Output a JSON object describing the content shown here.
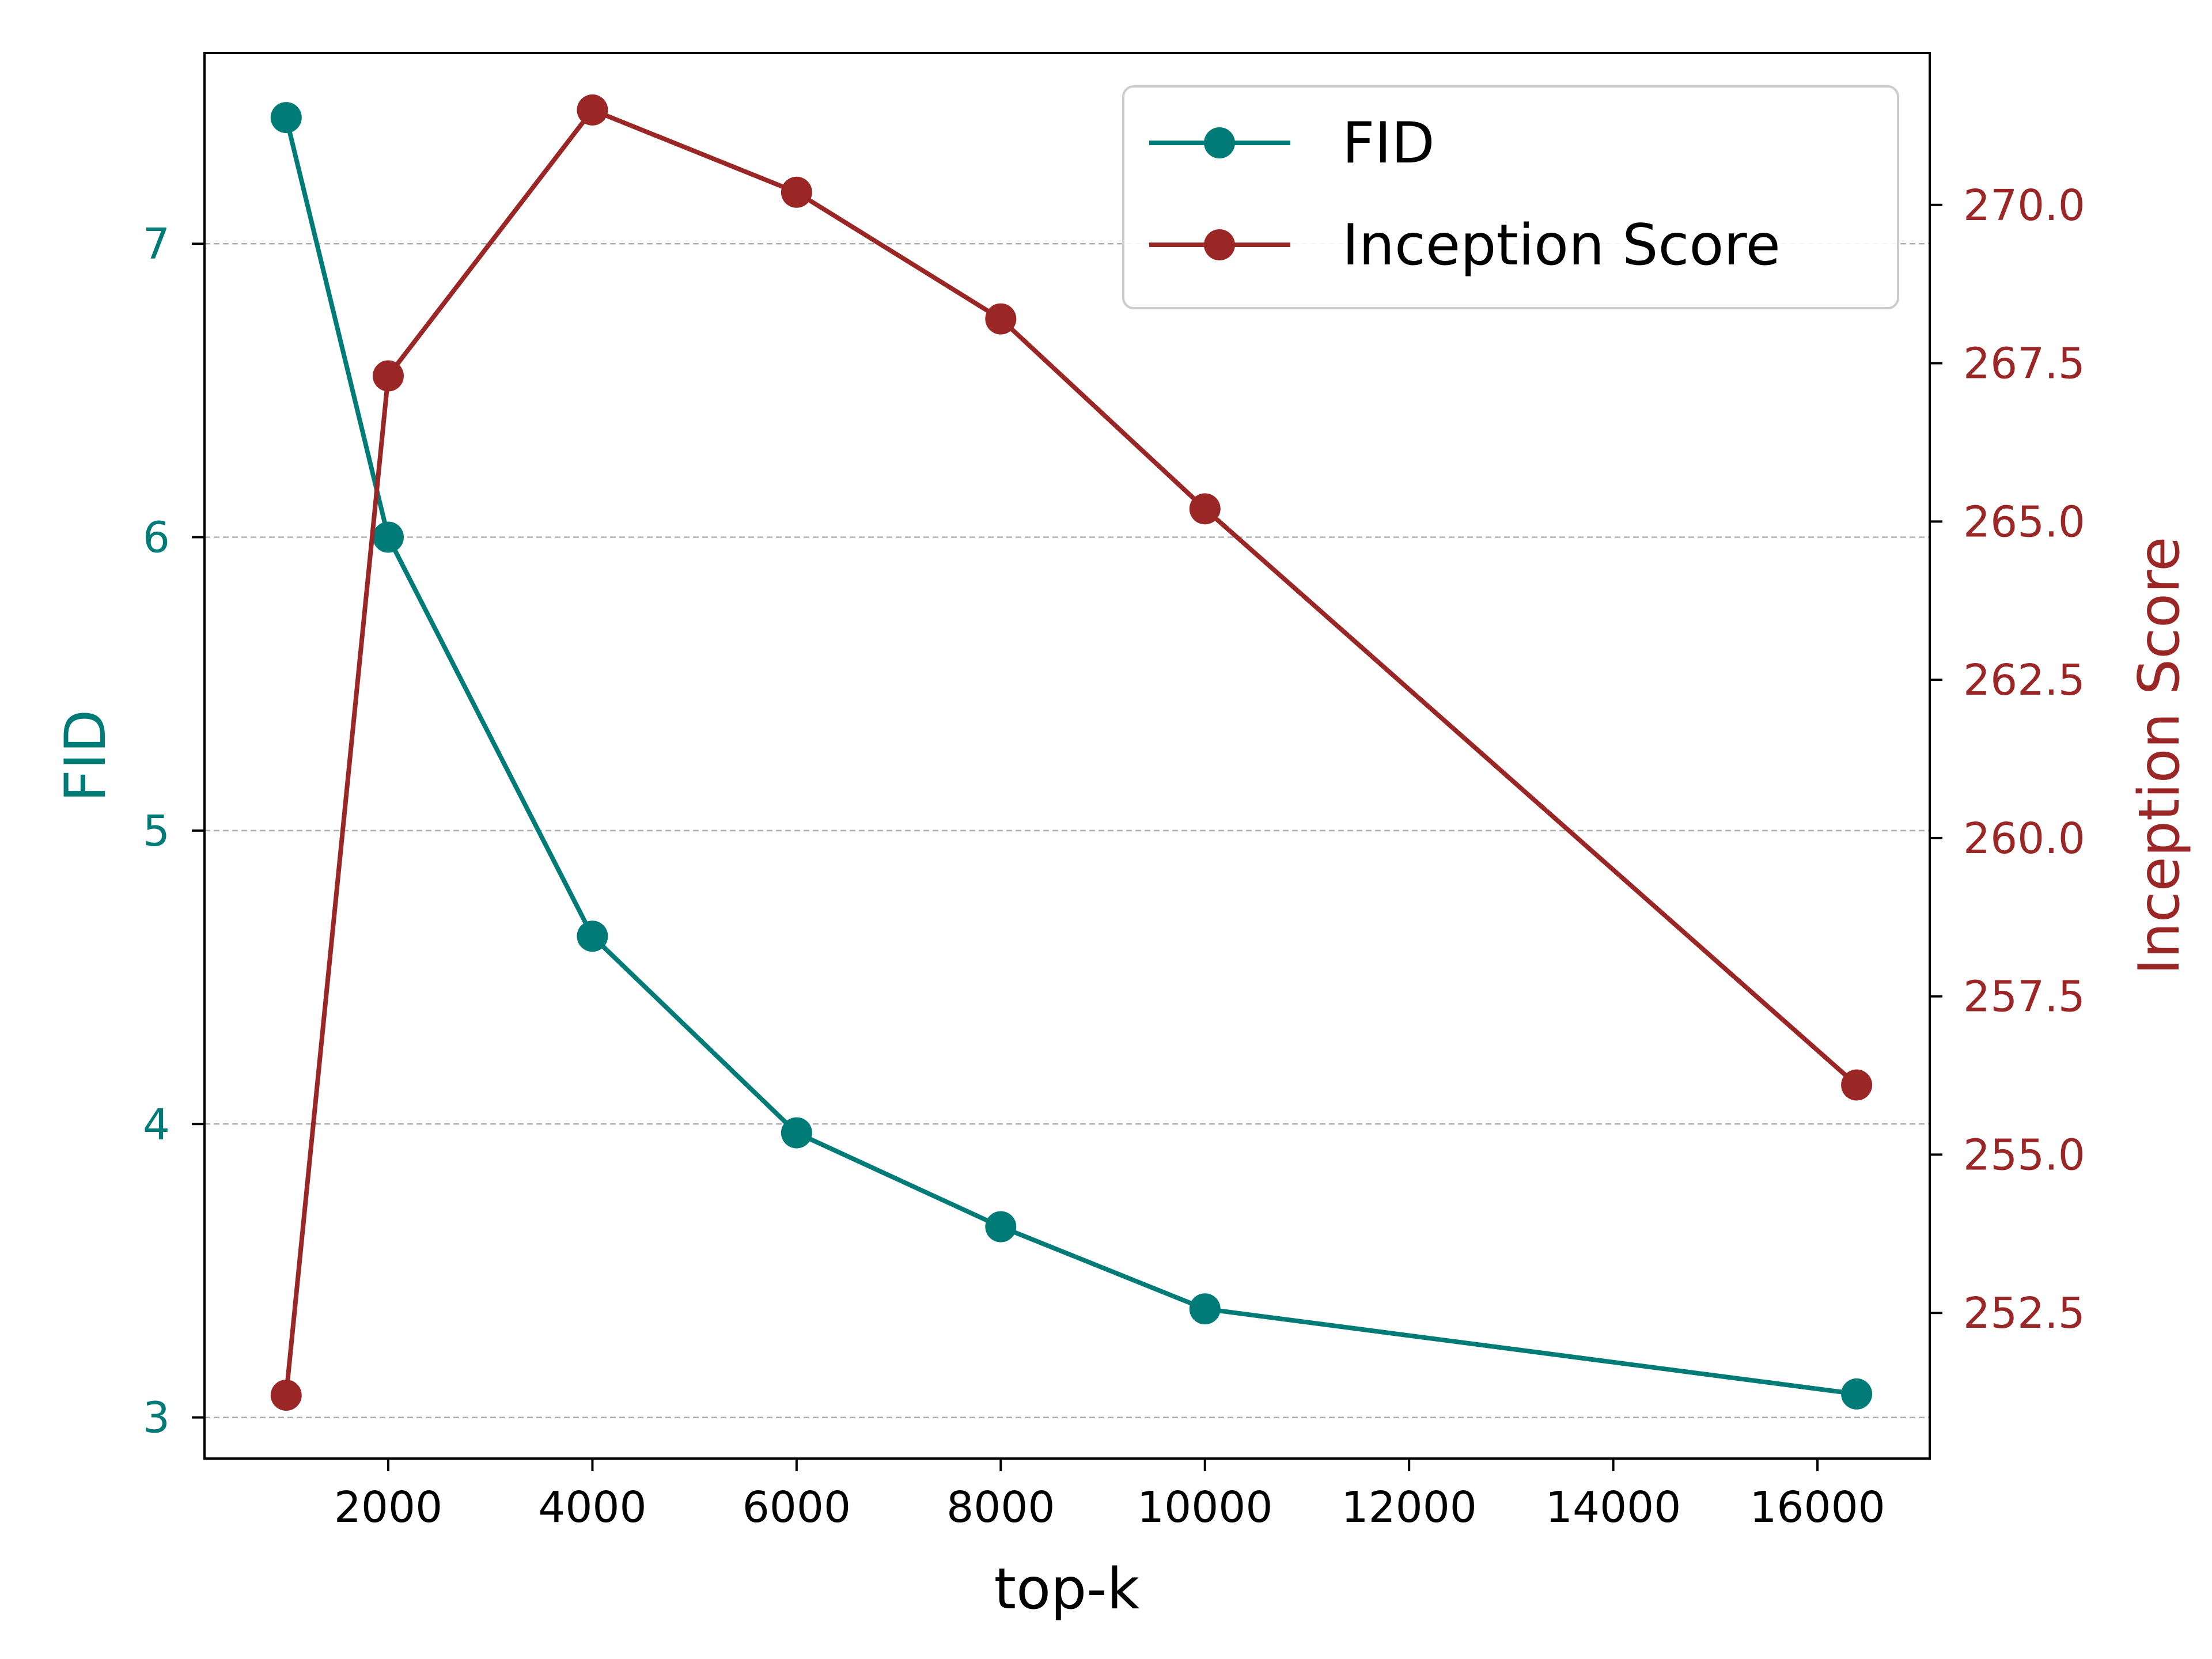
{
  "chart_data": {
    "type": "line",
    "title": "",
    "xlabel": "top-k",
    "x": [
      1000,
      2000,
      4000,
      6000,
      8000,
      10000,
      16384
    ],
    "xlim": [
      200,
      17100
    ],
    "xticks": [
      2000,
      4000,
      6000,
      8000,
      10000,
      12000,
      14000,
      16000
    ],
    "grid": "horizontal dashed (left axis)",
    "legend_position": "top-right",
    "left_axis": {
      "ylabel": "FID",
      "ylim": [
        2.86,
        7.65
      ],
      "yticks": [
        3,
        4,
        5,
        6,
        7
      ],
      "color": "#007b78"
    },
    "right_axis": {
      "ylabel": "Inception Score",
      "ylim": [
        250.2,
        272.4
      ],
      "yticks": [
        252.5,
        255.0,
        257.5,
        260.0,
        262.5,
        265.0,
        267.5,
        270.0
      ],
      "yticklabels": [
        "252.5",
        "255.0",
        "257.5",
        "260.0",
        "262.5",
        "265.0",
        "267.5",
        "270.0"
      ],
      "color": "#9b2626"
    },
    "series": [
      {
        "name": "FID",
        "axis": "left",
        "color": "#007b78",
        "values": [
          7.43,
          6.0,
          4.64,
          3.97,
          3.65,
          3.37,
          3.08
        ]
      },
      {
        "name": "Inception Score",
        "axis": "right",
        "color": "#9b2626",
        "values": [
          251.2,
          267.3,
          271.5,
          270.2,
          268.2,
          265.2,
          256.1
        ]
      }
    ]
  }
}
